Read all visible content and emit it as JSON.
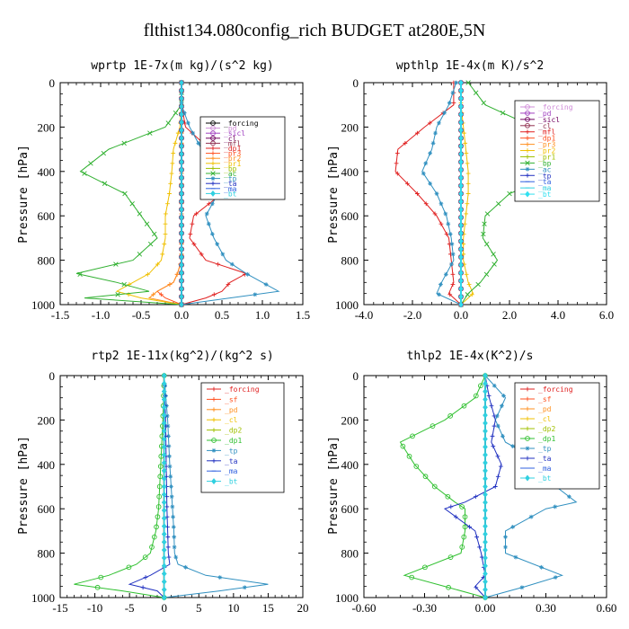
{
  "figure_title": "flthist134.080config_rich  BUDGET at280E,5N",
  "chart_data": [
    {
      "type": "line",
      "title": "wprtp  1E-7x(m kg)/(s^2 kg)",
      "ylabel": "Pressure [hPa]",
      "xlim": [
        -1.5,
        1.5
      ],
      "ylim": [
        1000,
        0
      ],
      "xticks": [
        "-1.5",
        "-1.0",
        "-0.5",
        "0.0",
        "0.5",
        "1.0",
        "1.5"
      ],
      "yticks": [
        "0",
        "200",
        "400",
        "600",
        "800",
        "1000"
      ],
      "legend": "top-right",
      "y": [
        0,
        100,
        200,
        300,
        400,
        500,
        600,
        700,
        800,
        860,
        900,
        940,
        970,
        1000
      ],
      "series": [
        {
          "name": "_forcing",
          "color": "#000000",
          "marker": "o",
          "values": [
            0,
            0,
            0,
            0,
            0,
            0,
            0,
            0,
            0,
            0,
            0,
            0,
            0,
            0
          ]
        },
        {
          "name": "_pd",
          "color": "#d08cd8",
          "marker": "o",
          "values": [
            0,
            0,
            0,
            0,
            0,
            0,
            0,
            0,
            0,
            0,
            0,
            0,
            0,
            0
          ]
        },
        {
          "name": "_sicl",
          "color": "#a040c0",
          "marker": "o",
          "values": [
            0,
            0,
            0,
            0,
            0,
            0,
            0,
            0,
            0,
            0,
            0,
            0,
            0,
            0
          ]
        },
        {
          "name": "_cl",
          "color": "#700060",
          "marker": "o",
          "values": [
            0,
            0,
            0,
            0,
            0,
            0,
            0,
            0,
            0,
            0,
            0,
            0,
            0,
            0
          ]
        },
        {
          "name": "_mfl",
          "color": "#903050",
          "marker": "o",
          "values": [
            0,
            0,
            0,
            0,
            0,
            0,
            0,
            0,
            0,
            0,
            0,
            0,
            0,
            0
          ]
        },
        {
          "name": "_dp1",
          "color": "#e02020",
          "marker": "+",
          "values": [
            0,
            0,
            0.05,
            0.35,
            0.55,
            0.5,
            0.15,
            0.1,
            0.3,
            0.8,
            0.6,
            0.5,
            0.3,
            0
          ]
        },
        {
          "name": "_pr3",
          "color": "#ff5020",
          "marker": "+",
          "values": [
            0,
            0,
            0,
            0,
            0,
            0,
            0,
            0,
            0,
            -0.05,
            -0.1,
            -0.3,
            -0.2,
            0
          ]
        },
        {
          "name": "_pr2",
          "color": "#ff9020",
          "marker": "+",
          "values": [
            0,
            0,
            0,
            0,
            0,
            0,
            0,
            0,
            0,
            -0.05,
            -0.1,
            -0.3,
            -0.4,
            0
          ]
        },
        {
          "name": "_pr1",
          "color": "#f0c000",
          "marker": "+",
          "values": [
            0,
            0,
            -0.02,
            -0.1,
            -0.12,
            -0.15,
            -0.2,
            -0.2,
            -0.25,
            -0.4,
            -0.6,
            -0.8,
            -0.5,
            0
          ]
        },
        {
          "name": "_bp",
          "color": "#a0c000",
          "marker": "+",
          "values": [
            0,
            0,
            0,
            0,
            0,
            0,
            0,
            0,
            0,
            0,
            0,
            0,
            0,
            0
          ]
        },
        {
          "name": "_ac",
          "color": "#30b030",
          "marker": "x",
          "values": [
            0,
            0,
            -0.2,
            -0.9,
            -1.25,
            -0.7,
            -0.5,
            -0.3,
            -0.6,
            -1.3,
            -0.8,
            -0.4,
            -1.2,
            0
          ]
        },
        {
          "name": "_tp",
          "color": "#3090c0",
          "marker": "*",
          "values": [
            0,
            0,
            0.1,
            0.25,
            0.3,
            0.45,
            0.3,
            0.4,
            0.55,
            0.8,
            1.0,
            1.2,
            0.6,
            0
          ]
        },
        {
          "name": "_ta",
          "color": "#2030c0",
          "marker": "+",
          "values": [
            0,
            0,
            0,
            0,
            0,
            0,
            0,
            0,
            0,
            0,
            0,
            0,
            0,
            0
          ]
        },
        {
          "name": "_ma",
          "color": "#3060e0",
          "marker": "-",
          "values": [
            0,
            0,
            0,
            0,
            0,
            0,
            0,
            0,
            0,
            0,
            0,
            0,
            0,
            0
          ]
        },
        {
          "name": "_bt",
          "color": "#30d0e0",
          "marker": "diamond",
          "values": [
            0,
            0,
            0,
            0,
            0,
            0,
            0,
            0,
            0,
            0,
            0,
            0,
            0,
            0
          ]
        }
      ]
    },
    {
      "type": "line",
      "title": "wpthlp  1E-4x(m K)/s^2",
      "ylabel": "Pressure [hPa]",
      "xlim": [
        -4.0,
        6.0
      ],
      "ylim": [
        1000,
        0
      ],
      "xticks": [
        "-4.0",
        "-2.0",
        "0.0",
        "2.0",
        "4.0",
        "6.0"
      ],
      "yticks": [
        "0",
        "200",
        "400",
        "600",
        "800",
        "1000"
      ],
      "legend": "top-right",
      "y": [
        0,
        100,
        200,
        300,
        400,
        500,
        600,
        700,
        800,
        900,
        950,
        1000
      ],
      "series": [
        {
          "name": "_forcing",
          "color": "#d08cd8",
          "marker": "o",
          "values": [
            0,
            0,
            0,
            0,
            0,
            0,
            0,
            0,
            0,
            0,
            0,
            0
          ]
        },
        {
          "name": "_pd",
          "color": "#a040c0",
          "marker": "o",
          "values": [
            0,
            0,
            0,
            0,
            0,
            0,
            0,
            0,
            0,
            0,
            0,
            0
          ]
        },
        {
          "name": "_sicl",
          "color": "#700060",
          "marker": "o",
          "values": [
            0,
            0,
            0,
            0,
            0,
            0,
            0,
            0,
            0,
            0,
            0,
            0
          ]
        },
        {
          "name": "_cl",
          "color": "#903050",
          "marker": "o",
          "values": [
            0,
            0,
            0,
            0,
            0,
            0,
            0,
            0,
            0,
            0,
            0,
            0
          ]
        },
        {
          "name": "_mfl",
          "color": "#e02020",
          "marker": "+",
          "values": [
            -0.3,
            -0.3,
            -1.5,
            -2.6,
            -2.7,
            -1.8,
            -1.0,
            -0.5,
            -0.4,
            -0.3,
            -0.5,
            0
          ]
        },
        {
          "name": "_dp1",
          "color": "#ff5020",
          "marker": "+",
          "values": [
            0,
            0,
            0,
            0,
            0,
            0,
            0,
            0,
            0,
            0,
            0,
            0
          ]
        },
        {
          "name": "_pr3",
          "color": "#ff9020",
          "marker": "+",
          "values": [
            0,
            0,
            0,
            0,
            0,
            0,
            0,
            0,
            0,
            0,
            0,
            0
          ]
        },
        {
          "name": "_pr2",
          "color": "#f0c000",
          "marker": "+",
          "values": [
            0,
            0,
            0.1,
            0.2,
            0.3,
            0.3,
            0.2,
            0.1,
            0.1,
            0.3,
            0.5,
            0
          ]
        },
        {
          "name": "_pr1",
          "color": "#a0c000",
          "marker": "+",
          "values": [
            0,
            0,
            0,
            0,
            0,
            0,
            0,
            0,
            0,
            0,
            0,
            0
          ]
        },
        {
          "name": "_bp",
          "color": "#30b030",
          "marker": "x",
          "values": [
            0.3,
            1.0,
            3.0,
            4.3,
            4.2,
            2.0,
            1.0,
            0.9,
            1.5,
            0.8,
            0.3,
            0
          ]
        },
        {
          "name": "_ac",
          "color": "#3090c0",
          "marker": "*",
          "values": [
            -0.2,
            -0.5,
            -1.0,
            -1.2,
            -1.6,
            -1.0,
            -0.6,
            -0.4,
            -0.3,
            -0.8,
            -1.0,
            0
          ]
        },
        {
          "name": "_tp",
          "color": "#2030c0",
          "marker": "+",
          "values": [
            0,
            0,
            0,
            0,
            0,
            0,
            0,
            0,
            0,
            0,
            0,
            0
          ]
        },
        {
          "name": "_ta",
          "color": "#3060e0",
          "marker": "-",
          "values": [
            0,
            0,
            0,
            0,
            0,
            0,
            0,
            0,
            0,
            0,
            0,
            0
          ]
        },
        {
          "name": "_ma",
          "color": "#30d0e0",
          "marker": "-",
          "values": [
            0,
            0,
            0,
            0,
            0,
            0,
            0,
            0,
            0,
            0,
            0,
            0
          ]
        },
        {
          "name": "_bt",
          "color": "#30e0f0",
          "marker": "diamond",
          "values": [
            0,
            0,
            0,
            0,
            0,
            0,
            0,
            0,
            0,
            0,
            0,
            0
          ]
        }
      ]
    },
    {
      "type": "line",
      "title": "rtp2  1E-11x(kg^2)/(kg^2 s)",
      "ylabel": "Pressure [hPa]",
      "xlim": [
        -15,
        20
      ],
      "ylim": [
        1000,
        0
      ],
      "xticks": [
        "-15",
        "-10",
        "-5",
        "0",
        "5",
        "10",
        "15",
        "20"
      ],
      "yticks": [
        "0",
        "200",
        "400",
        "600",
        "800",
        "1000"
      ],
      "legend": "top-right",
      "y": [
        0,
        200,
        400,
        600,
        700,
        800,
        850,
        900,
        940,
        970,
        1000
      ],
      "series": [
        {
          "name": "_forcing",
          "color": "#e02020",
          "marker": "+",
          "values": [
            0,
            0,
            0,
            0,
            0,
            0,
            0,
            0,
            0,
            0,
            0
          ]
        },
        {
          "name": "_sf",
          "color": "#ff5020",
          "marker": "+",
          "values": [
            0,
            0,
            0,
            0,
            0,
            0,
            0,
            0,
            0,
            0,
            0
          ]
        },
        {
          "name": "_pd",
          "color": "#ff9020",
          "marker": "+",
          "values": [
            0,
            0,
            0,
            0,
            0,
            0,
            0,
            0,
            0,
            0,
            0
          ]
        },
        {
          "name": "_cl",
          "color": "#f0c000",
          "marker": "+",
          "values": [
            0,
            0,
            0,
            0,
            0,
            0,
            0,
            0,
            0,
            0,
            0
          ]
        },
        {
          "name": "_dp2",
          "color": "#a0c000",
          "marker": "+",
          "values": [
            0,
            0,
            0,
            0,
            0,
            0,
            0,
            0,
            0,
            0,
            0
          ]
        },
        {
          "name": "_dp1",
          "color": "#30c030",
          "marker": "o",
          "values": [
            0,
            -0.2,
            -0.5,
            -0.8,
            -1.2,
            -2.0,
            -4.0,
            -8.0,
            -13.0,
            -6.0,
            0
          ]
        },
        {
          "name": "_tp",
          "color": "#3090c0",
          "marker": "*",
          "values": [
            0,
            0.5,
            0.8,
            1.2,
            1.4,
            1.5,
            2.0,
            6.0,
            15.0,
            8.0,
            0
          ]
        },
        {
          "name": "_ta",
          "color": "#2030c0",
          "marker": "+",
          "values": [
            0,
            0.2,
            0.3,
            0.4,
            0.5,
            0.6,
            0.8,
            -2.0,
            -5.0,
            -1.0,
            0
          ]
        },
        {
          "name": "_ma",
          "color": "#3060e0",
          "marker": "-",
          "values": [
            0,
            0,
            0,
            0,
            0,
            0,
            0,
            0,
            0,
            0,
            0
          ]
        },
        {
          "name": "_bt",
          "color": "#30d0e0",
          "marker": "diamond",
          "values": [
            0,
            0,
            0,
            0,
            0,
            0,
            0,
            0,
            0,
            0,
            0
          ]
        }
      ]
    },
    {
      "type": "line",
      "title": "thlp2  1E-4x(K^2)/s",
      "ylabel": "Pressure [hPa]",
      "xlim": [
        -0.6,
        0.6
      ],
      "ylim": [
        1000,
        0
      ],
      "xticks": [
        "-0.60",
        "-0.30",
        "0.00",
        "0.30",
        "0.60"
      ],
      "yticks": [
        "0",
        "200",
        "400",
        "600",
        "800",
        "1000"
      ],
      "legend": "top-right",
      "y": [
        0,
        100,
        200,
        300,
        400,
        500,
        570,
        600,
        700,
        800,
        900,
        950,
        1000
      ],
      "series": [
        {
          "name": "_forcing",
          "color": "#e02020",
          "marker": "+",
          "values": [
            0,
            0,
            0,
            0,
            0,
            0,
            0,
            0,
            0,
            0,
            0,
            0,
            0
          ]
        },
        {
          "name": "_sf",
          "color": "#ff5020",
          "marker": "+",
          "values": [
            0,
            0,
            0,
            0,
            0,
            0,
            0,
            0,
            0,
            0,
            0,
            0,
            0
          ]
        },
        {
          "name": "_pd",
          "color": "#ff9020",
          "marker": "+",
          "values": [
            0,
            0,
            0,
            0,
            0,
            0,
            0,
            0,
            0,
            0,
            0,
            0,
            0
          ]
        },
        {
          "name": "_cl",
          "color": "#f0c000",
          "marker": "+",
          "values": [
            0,
            0,
            0,
            0,
            0,
            0,
            0,
            0,
            0,
            0,
            0,
            0,
            0
          ]
        },
        {
          "name": "_dp2",
          "color": "#a0c000",
          "marker": "+",
          "values": [
            0,
            0,
            0,
            0,
            0,
            0,
            0,
            0,
            0,
            0,
            0,
            0,
            0
          ]
        },
        {
          "name": "_dp1",
          "color": "#30c030",
          "marker": "o",
          "values": [
            0,
            -0.05,
            -0.2,
            -0.42,
            -0.35,
            -0.25,
            -0.15,
            -0.1,
            -0.1,
            -0.12,
            -0.4,
            -0.2,
            0
          ]
        },
        {
          "name": "_tp",
          "color": "#3090c0",
          "marker": "*",
          "values": [
            0,
            0.1,
            0.05,
            0.1,
            0.3,
            0.35,
            0.45,
            0.3,
            0.1,
            0.1,
            0.38,
            0.2,
            0
          ]
        },
        {
          "name": "_ta",
          "color": "#2030c0",
          "marker": "+",
          "values": [
            0,
            0.02,
            0.05,
            0.03,
            0.08,
            0.05,
            -0.1,
            -0.2,
            -0.05,
            -0.02,
            0,
            -0.05,
            0
          ]
        },
        {
          "name": "_ma",
          "color": "#3060e0",
          "marker": "-",
          "values": [
            0,
            0,
            0,
            0,
            0,
            0,
            0,
            0,
            0,
            0,
            0,
            0,
            0
          ]
        },
        {
          "name": "_bt",
          "color": "#30d0e0",
          "marker": "diamond",
          "values": [
            0,
            0,
            0,
            0,
            0,
            0,
            0,
            0,
            0,
            0,
            0,
            0,
            0
          ]
        }
      ]
    }
  ]
}
